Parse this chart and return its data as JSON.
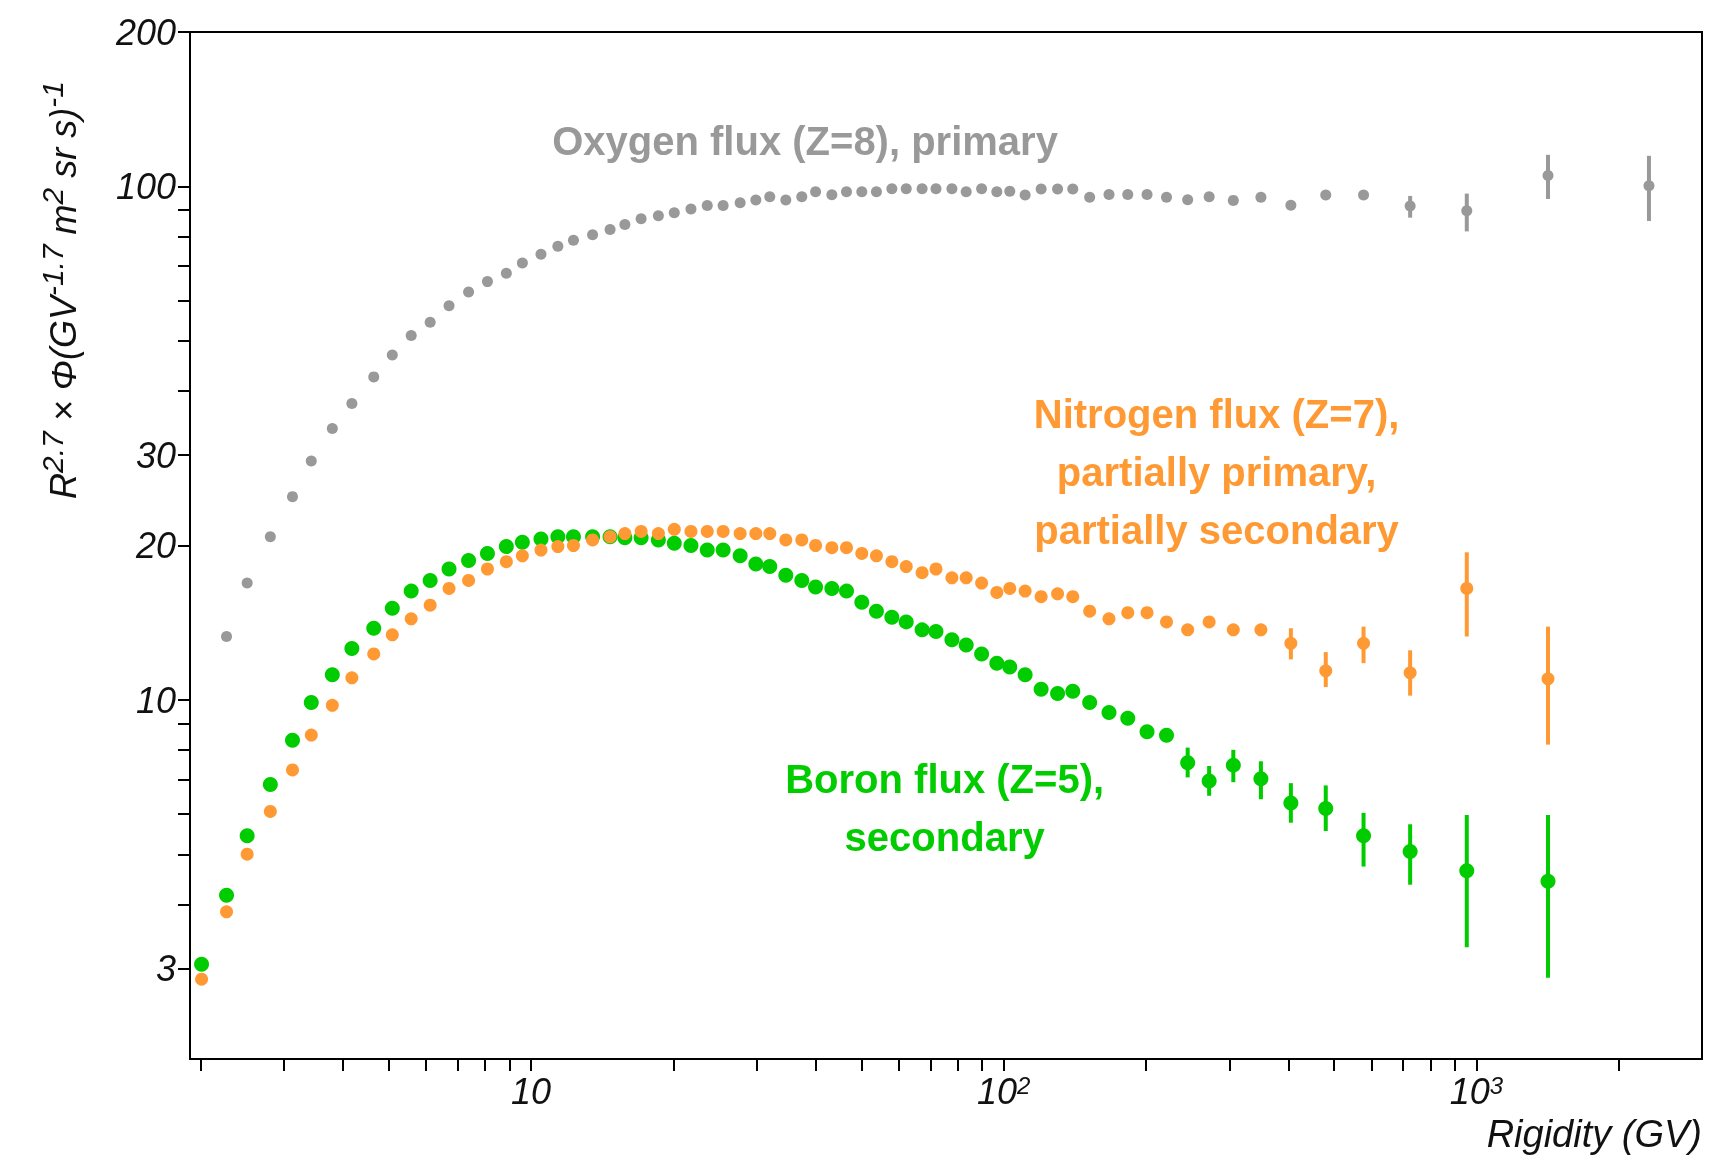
{
  "chart_data": {
    "type": "scatter",
    "xlabel": "Rigidity (GV)",
    "ylabel": "R$^{2.7}$ × Φ(GV$^{-1.7}$ m$^{2}$ sr s)$^{-1}$",
    "x": [
      2.01,
      2.27,
      2.51,
      2.81,
      3.13,
      3.43,
      3.8,
      4.18,
      4.65,
      5.09,
      5.58,
      6.12,
      6.71,
      7.38,
      8.09,
      8.87,
      9.59,
      10.5,
      11.4,
      12.3,
      13.5,
      14.7,
      15.8,
      17.1,
      18.6,
      20.1,
      21.8,
      23.6,
      25.5,
      27.7,
      29.9,
      32.0,
      34.6,
      37.4,
      40.0,
      43.3,
      46.5,
      50.1,
      53.8,
      58.0,
      62.2,
      67.2,
      71.9,
      77.7,
      83.3,
      89.8,
      96.7,
      103,
      111,
      120,
      130,
      140,
      152,
      167,
      183,
      201,
      221,
      245,
      272,
      306,
      350,
      405,
      480,
      577,
      724,
      954,
      1417,
      2317
    ],
    "series": [
      {
        "name": "Oxygen flux (Z=8), primary",
        "color": "#999999",
        "values": [
          null,
          13.3,
          16.9,
          20.8,
          24.9,
          29.2,
          33.8,
          37.8,
          42.6,
          47.0,
          51.3,
          54.4,
          58.6,
          62.3,
          65.3,
          67.8,
          71.0,
          73.8,
          76.5,
          78.6,
          80.6,
          82.5,
          84.4,
          86.6,
          87.7,
          88.9,
          90.4,
          91.9,
          91.9,
          93.0,
          94.2,
          95.5,
          94.2,
          95.5,
          97.7,
          96.4,
          97.7,
          97.7,
          97.7,
          99.0,
          99.0,
          99.0,
          99.0,
          99.0,
          97.7,
          99.0,
          97.7,
          97.9,
          96.3,
          98.9,
          98.9,
          98.9,
          95.3,
          96.5,
          96.5,
          96.5,
          95.3,
          94.3,
          95.5,
          94.0,
          95.3,
          92.0,
          96.3,
          96.3,
          91.7,
          89.7,
          105.1,
          100.4
        ],
        "errors": [
          null,
          null,
          null,
          null,
          null,
          null,
          null,
          null,
          null,
          null,
          null,
          null,
          null,
          null,
          null,
          null,
          null,
          null,
          null,
          null,
          null,
          null,
          null,
          null,
          null,
          null,
          null,
          null,
          null,
          null,
          null,
          null,
          null,
          null,
          null,
          null,
          null,
          null,
          null,
          null,
          null,
          null,
          null,
          null,
          null,
          null,
          null,
          null,
          null,
          null,
          null,
          null,
          null,
          null,
          null,
          null,
          null,
          null,
          null,
          null,
          null,
          null,
          null,
          null,
          [
            87.0,
            95.9
          ],
          [
            81.8,
            96.9
          ],
          [
            94.6,
            115.3
          ],
          [
            85.7,
            114.8
          ]
        ]
      },
      {
        "name": "Nitrogen flux (Z=7),\npartially primary,\npartially secondary",
        "color": "#ff9933",
        "values": [
          2.86,
          3.87,
          5.01,
          6.07,
          7.31,
          8.55,
          9.77,
          11.05,
          12.3,
          13.4,
          14.4,
          15.3,
          16.5,
          17.1,
          18.0,
          18.6,
          19.1,
          19.6,
          19.9,
          20.0,
          20.5,
          20.8,
          21.1,
          21.3,
          21.1,
          21.5,
          21.3,
          21.3,
          21.3,
          21.1,
          21.1,
          21.1,
          20.5,
          20.5,
          20.0,
          19.8,
          19.8,
          19.3,
          19.1,
          18.6,
          18.2,
          17.7,
          18.0,
          17.3,
          17.3,
          16.9,
          16.2,
          16.5,
          16.3,
          15.9,
          16.1,
          15.9,
          14.9,
          14.4,
          14.8,
          14.8,
          14.2,
          13.7,
          14.2,
          13.7,
          13.7,
          12.9,
          11.4,
          12.9,
          11.3,
          16.5,
          11.0,
          null
        ],
        "errors": [
          null,
          null,
          null,
          null,
          null,
          null,
          null,
          null,
          null,
          null,
          null,
          null,
          null,
          null,
          null,
          null,
          null,
          null,
          null,
          null,
          null,
          null,
          null,
          null,
          null,
          null,
          null,
          null,
          null,
          null,
          null,
          null,
          null,
          null,
          null,
          null,
          null,
          null,
          null,
          null,
          null,
          null,
          null,
          null,
          null,
          null,
          null,
          null,
          null,
          null,
          null,
          null,
          null,
          null,
          null,
          null,
          null,
          null,
          null,
          null,
          null,
          [
            12.0,
            13.8
          ],
          [
            10.6,
            12.4
          ],
          [
            11.8,
            13.9
          ],
          [
            10.2,
            12.5
          ],
          [
            13.3,
            19.4
          ],
          [
            8.19,
            13.9
          ],
          null
        ]
      },
      {
        "name": "Boron flux (Z=5),\nsecondary",
        "color": "#00cc00",
        "values": [
          3.06,
          4.17,
          5.44,
          6.85,
          8.35,
          9.89,
          11.2,
          12.6,
          13.8,
          15.1,
          16.3,
          17.1,
          18.0,
          18.7,
          19.3,
          19.9,
          20.3,
          20.6,
          20.8,
          20.8,
          20.8,
          20.8,
          20.7,
          20.7,
          20.5,
          20.2,
          20.0,
          19.6,
          19.6,
          19.1,
          18.4,
          18.2,
          17.5,
          17.1,
          16.6,
          16.5,
          16.3,
          15.5,
          14.9,
          14.5,
          14.2,
          13.7,
          13.6,
          13.1,
          12.8,
          12.3,
          11.8,
          11.6,
          11.2,
          10.5,
          10.3,
          10.4,
          9.89,
          9.46,
          9.22,
          8.68,
          8.54,
          7.55,
          6.96,
          7.47,
          7.03,
          6.3,
          6.15,
          5.44,
          5.07,
          4.65,
          4.44,
          null
        ],
        "errors": [
          null,
          null,
          null,
          null,
          null,
          null,
          null,
          null,
          null,
          null,
          null,
          null,
          null,
          null,
          null,
          null,
          null,
          null,
          null,
          null,
          null,
          null,
          null,
          null,
          null,
          null,
          null,
          null,
          null,
          null,
          null,
          null,
          null,
          null,
          null,
          null,
          null,
          null,
          null,
          null,
          null,
          null,
          null,
          null,
          null,
          null,
          null,
          null,
          null,
          null,
          null,
          null,
          null,
          null,
          null,
          null,
          null,
          [
            7.07,
            8.08
          ],
          [
            6.51,
            7.44
          ],
          [
            6.92,
            8.0
          ],
          [
            6.41,
            7.6
          ],
          [
            5.77,
            6.89
          ],
          [
            5.56,
            6.82
          ],
          [
            4.74,
            6.03
          ],
          [
            4.37,
            5.73
          ],
          [
            3.3,
            5.97
          ],
          [
            2.88,
            5.97
          ],
          null
        ]
      }
    ],
    "log": "xy",
    "xlim": [
      1.9,
      3000
    ],
    "ylim": [
      2,
      200
    ],
    "xticks": [
      {
        "value": 2,
        "label": null
      },
      {
        "value": 3,
        "label": null
      },
      {
        "value": 4,
        "label": null
      },
      {
        "value": 5,
        "label": null
      },
      {
        "value": 6,
        "label": null
      },
      {
        "value": 7,
        "label": null
      },
      {
        "value": 8,
        "label": null
      },
      {
        "value": 9,
        "label": null
      },
      10,
      {
        "value": 20,
        "label": null
      },
      {
        "value": 30,
        "label": null
      },
      {
        "value": 40,
        "label": null
      },
      {
        "value": 50,
        "label": null
      },
      {
        "value": 60,
        "label": null
      },
      {
        "value": 70,
        "label": null
      },
      {
        "value": 80,
        "label": null
      },
      {
        "value": 90,
        "label": null
      },
      {
        "value": 100,
        "label": "10$^{2}$"
      },
      {
        "value": 200,
        "label": null
      },
      {
        "value": 300,
        "label": null
      },
      {
        "value": 400,
        "label": null
      },
      {
        "value": 500,
        "label": null
      },
      {
        "value": 600,
        "label": null
      },
      {
        "value": 700,
        "label": null
      },
      {
        "value": 800,
        "label": null
      },
      {
        "value": 900,
        "label": null
      },
      {
        "value": 1000,
        "label": "10$^{3}$"
      },
      {
        "value": 2000,
        "label": null
      }
    ],
    "yticks": [
      3,
      {
        "value": 4,
        "label": null
      },
      {
        "value": 5,
        "label": null
      },
      {
        "value": 6,
        "label": null
      },
      {
        "value": 7,
        "label": null
      },
      {
        "value": 8,
        "label": null
      },
      {
        "value": 9,
        "label": null
      },
      10,
      20,
      30,
      {
        "value": 40,
        "label": null
      },
      {
        "value": 50,
        "label": null
      },
      {
        "value": 60,
        "label": null
      },
      {
        "value": 70,
        "label": null
      },
      {
        "value": 80,
        "label": null
      },
      {
        "value": 90,
        "label": null
      },
      100,
      200
    ],
    "grid": false,
    "legend": false,
    "marker": "circle"
  }
}
